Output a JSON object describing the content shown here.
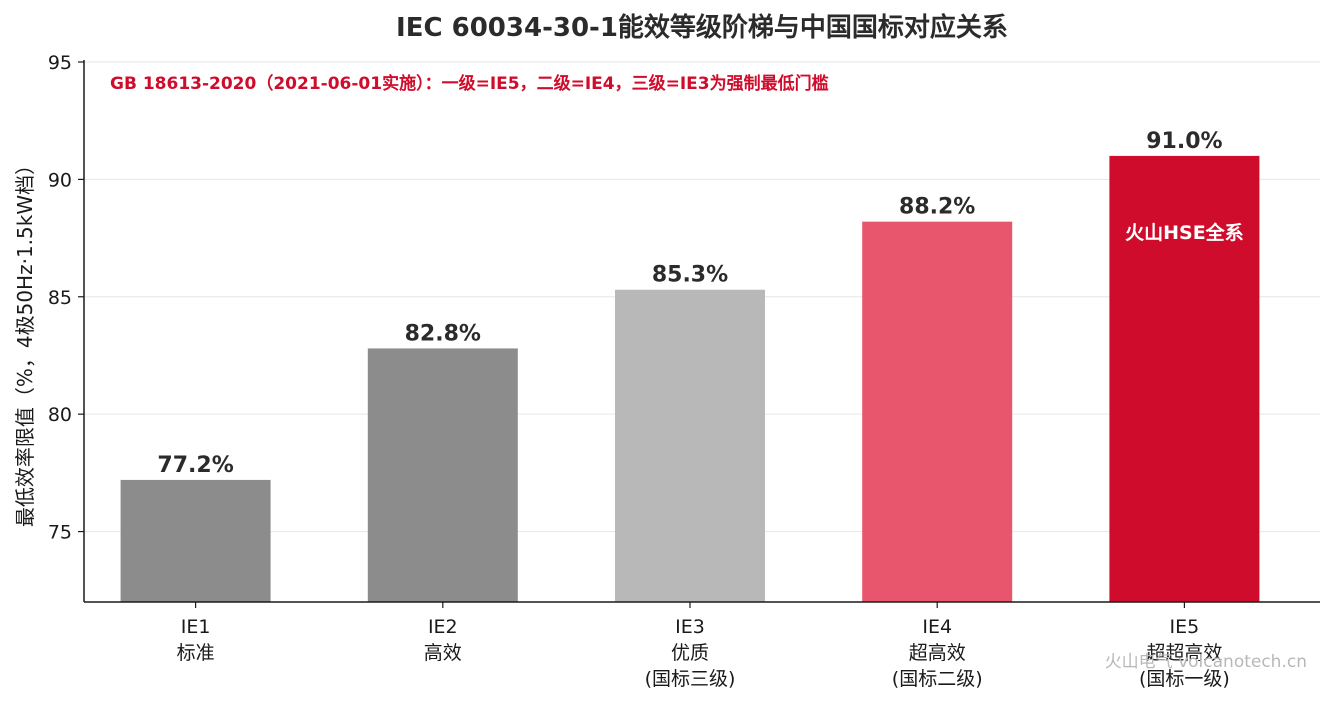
{
  "chart_data": {
    "type": "bar",
    "title": "IEC 60034-30-1能效等级阶梯与中国国标对应关系",
    "ylabel": "最低效率限值（%，4极50Hz·1.5kW档）",
    "xlabel": "",
    "ylim": [
      72,
      95
    ],
    "yticks": [
      75,
      80,
      85,
      90,
      95
    ],
    "grid": true,
    "categories": [
      [
        "IE1",
        "标准"
      ],
      [
        "IE2",
        "高效"
      ],
      [
        "IE3",
        "优质",
        "(国标三级)"
      ],
      [
        "IE4",
        "超高效",
        "(国标二级)"
      ],
      [
        "IE5",
        "超超高效",
        "(国标一级)"
      ]
    ],
    "values": [
      77.2,
      82.8,
      85.3,
      88.2,
      91.0
    ],
    "value_labels": [
      "77.2%",
      "82.8%",
      "85.3%",
      "88.2%",
      "91.0%"
    ],
    "bar_colors": [
      "#8c8c8c",
      "#8c8c8c",
      "#b8b8b8",
      "#e8566e",
      "#d00c2c"
    ],
    "annotations": [
      {
        "text": "GB 18613-2020（2021-06-01实施）：一级=IE5，二级=IE4，三级=IE3为强制最低门槛",
        "color": "#d00c2c"
      },
      {
        "text": "火山HSE全系",
        "bar_index": 4,
        "color": "#ffffff"
      }
    ]
  },
  "watermark": "火山电气 volcanotech.cn"
}
